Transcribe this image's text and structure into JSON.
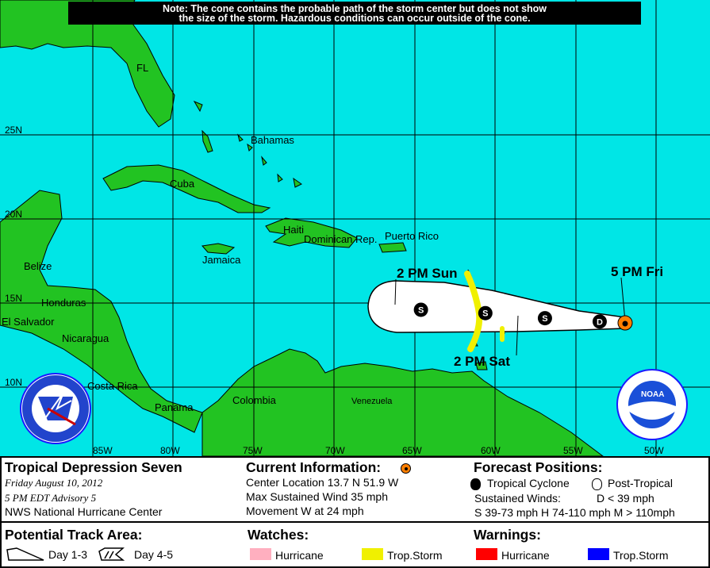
{
  "note": {
    "line1": "Note: The cone contains the probable path of the storm center but does not show",
    "line2": "the size of the storm. Hazardous conditions can occur outside of the cone."
  },
  "map": {
    "colors": {
      "water": "#00e6e6",
      "land": "#22c322",
      "cone": "#ffffff",
      "watch_ts": "#f0f000",
      "current": "#ff7f00"
    },
    "lat_labels": [
      "25N",
      "20N",
      "15N",
      "10N"
    ],
    "lon_labels": [
      "85W",
      "80W",
      "75W",
      "70W",
      "65W",
      "60W",
      "55W",
      "50W"
    ],
    "places": {
      "fl": "FL",
      "bahamas": "Bahamas",
      "cuba": "Cuba",
      "haiti": "Haiti",
      "dominican_rep": "Dominican Rep.",
      "puerto_rico": "Puerto Rico",
      "jamaica": "Jamaica",
      "belize": "Belize",
      "honduras": "Honduras",
      "el_salvador": "El Salvador",
      "nicaragua": "Nicaragua",
      "costa_rica": "Costa Rica",
      "panama": "Panama",
      "colombia": "Colombia",
      "venezuela": "Venezuela"
    },
    "time_labels": {
      "sun": "2 PM Sun",
      "sat": "2 PM Sat",
      "fri": "5 PM Fri"
    },
    "forecast_points": [
      {
        "letter": "S",
        "lat": 14.6,
        "lon": 64.6
      },
      {
        "letter": "S",
        "lat": 14.4,
        "lon": 60.6
      },
      {
        "letter": "S",
        "lat": 14.1,
        "lon": 56.9
      },
      {
        "letter": "D",
        "lat": 13.9,
        "lon": 53.5
      }
    ],
    "current": {
      "lat": 13.7,
      "lon": 51.9
    }
  },
  "panel": {
    "storm": {
      "title": "Tropical Depression Seven",
      "date": "Friday    August 10, 2012",
      "advisory": "5 PM EDT Advisory 5",
      "center": "NWS National Hurricane Center"
    },
    "current": {
      "title": "Current Information:",
      "location": "Center Location 13.7 N  51.9 W",
      "wind": "Max Sustained Wind  35 mph",
      "movement": "Movement W at  24 mph"
    },
    "forecast": {
      "title": "Forecast Positions:",
      "tropical": "Tropical Cyclone",
      "post": "Post-Tropical",
      "winds_label": "Sustained Winds:",
      "d": "D  < 39 mph",
      "scale": "S  39-73 mph  H  74-110 mph  M  > 110mph"
    },
    "track": {
      "title": "Potential Track Area:",
      "day13": "Day 1-3",
      "day45": "Day 4-5"
    },
    "watches": {
      "title": "Watches:",
      "hurricane": "Hurricane",
      "ts": "Trop.Storm",
      "hurricane_color": "#ffafbf",
      "ts_color": "#f0f000"
    },
    "warnings": {
      "title": "Warnings:",
      "hurricane": "Hurricane",
      "ts": "Trop.Storm",
      "hurricane_color": "#ff0000",
      "ts_color": "#0000ff"
    }
  },
  "logos": {
    "nws": "NATIONAL WEATHER SERVICE",
    "noaa": "NOAA"
  }
}
